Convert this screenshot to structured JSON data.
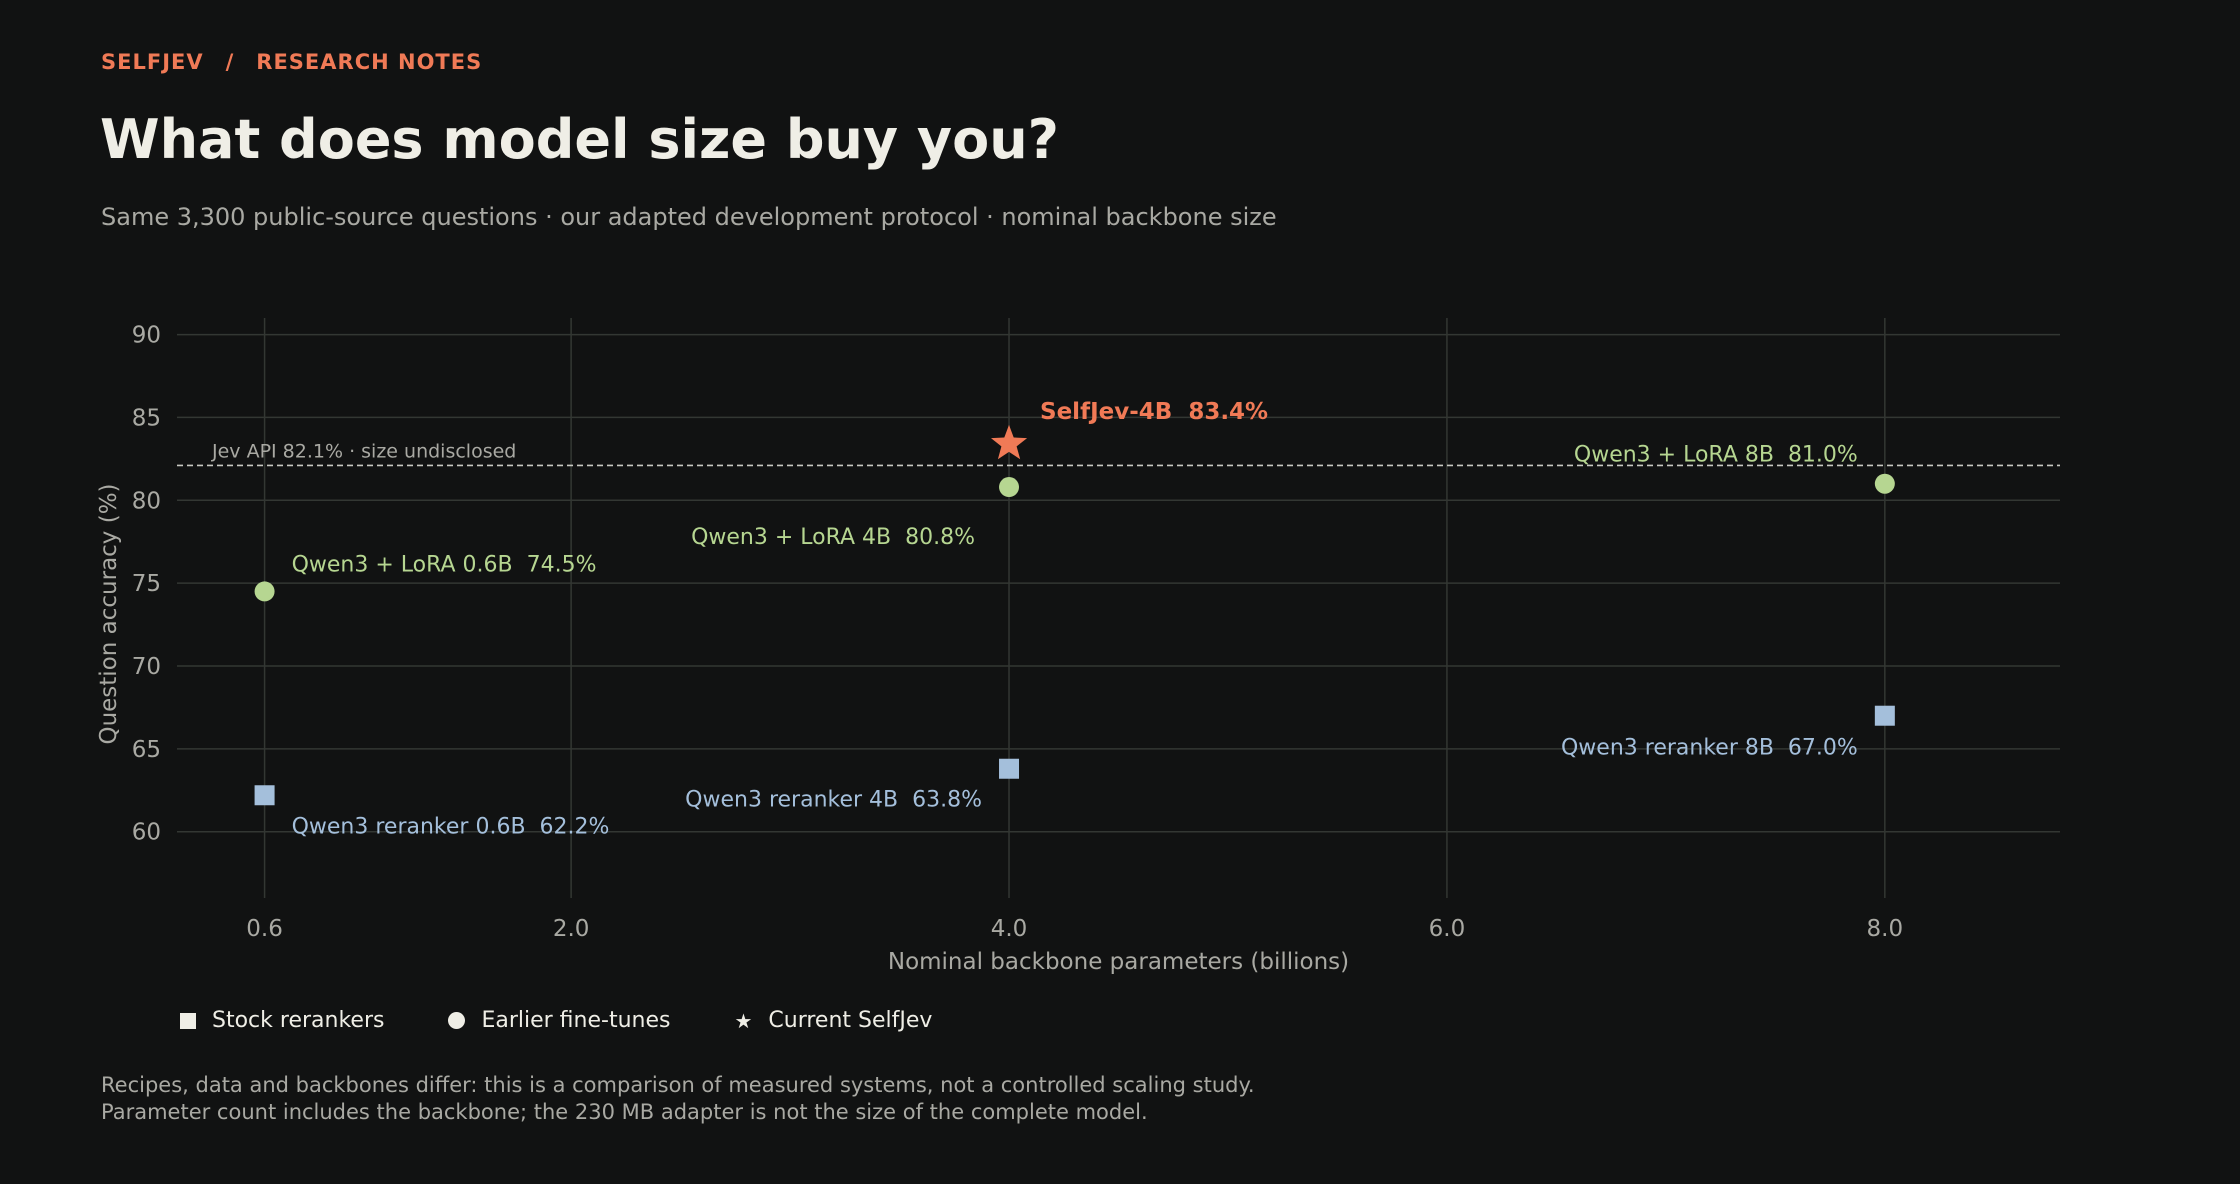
{
  "header": {
    "brand": "SELFJEV",
    "separator": "/",
    "section": "RESEARCH NOTES",
    "title": "What does model size buy you?",
    "subtitle": "Same 3,300 public-source questions · our adapted development protocol · nominal backbone size"
  },
  "chart_data": {
    "type": "scatter",
    "xlabel": "Nominal backbone parameters (billions)",
    "ylabel": "Question accuracy (%)",
    "xlim": [
      0.2,
      8.8
    ],
    "ylim": [
      56,
      91
    ],
    "x_ticks": [
      0.6,
      2.0,
      4.0,
      6.0,
      8.0
    ],
    "x_tick_labels": [
      "0.6",
      "2.0",
      "4.0",
      "6.0",
      "8.0"
    ],
    "y_ticks": [
      60,
      65,
      70,
      75,
      80,
      85,
      90
    ],
    "grid": true,
    "colors": {
      "stock": "#a4bfdb",
      "finetune": "#b6d691",
      "current": "#f07a56",
      "reference": "#c9c9c3"
    },
    "series": [
      {
        "name": "Stock rerankers",
        "marker": "square",
        "color": "#a4bfdb",
        "points": [
          {
            "x": 0.6,
            "y": 62.2,
            "label": "Qwen3 reranker 0.6B  62.2%"
          },
          {
            "x": 4.0,
            "y": 63.8,
            "label": "Qwen3 reranker 4B  63.8%"
          },
          {
            "x": 8.0,
            "y": 67.0,
            "label": "Qwen3 reranker 8B  67.0%"
          }
        ]
      },
      {
        "name": "Earlier fine-tunes",
        "marker": "circle",
        "color": "#b6d691",
        "points": [
          {
            "x": 0.6,
            "y": 74.5,
            "label": "Qwen3 + LoRA 0.6B  74.5%"
          },
          {
            "x": 4.0,
            "y": 80.8,
            "label": "Qwen3 + LoRA 4B  80.8%"
          },
          {
            "x": 8.0,
            "y": 81.0,
            "label": "Qwen3 + LoRA 8B  81.0%"
          }
        ]
      },
      {
        "name": "Current SelfJev",
        "marker": "star",
        "color": "#f07a56",
        "points": [
          {
            "x": 4.0,
            "y": 83.4,
            "label": "SelfJev-4B  83.4%"
          }
        ]
      }
    ],
    "reference_line": {
      "y": 82.1,
      "label": "Jev API 82.1% · size undisclosed"
    },
    "legend": [
      {
        "marker": "square",
        "label": "Stock rerankers"
      },
      {
        "marker": "circle",
        "label": "Earlier fine-tunes"
      },
      {
        "marker": "star",
        "label": "Current SelfJev"
      }
    ],
    "legend_position": "bottom-left"
  },
  "footnote": {
    "line1": "Recipes, data and backbones differ: this is a comparison of measured systems, not a controlled scaling study.",
    "line2": "Parameter count includes the backbone; the 230 MB adapter is not the size of the complete model."
  }
}
